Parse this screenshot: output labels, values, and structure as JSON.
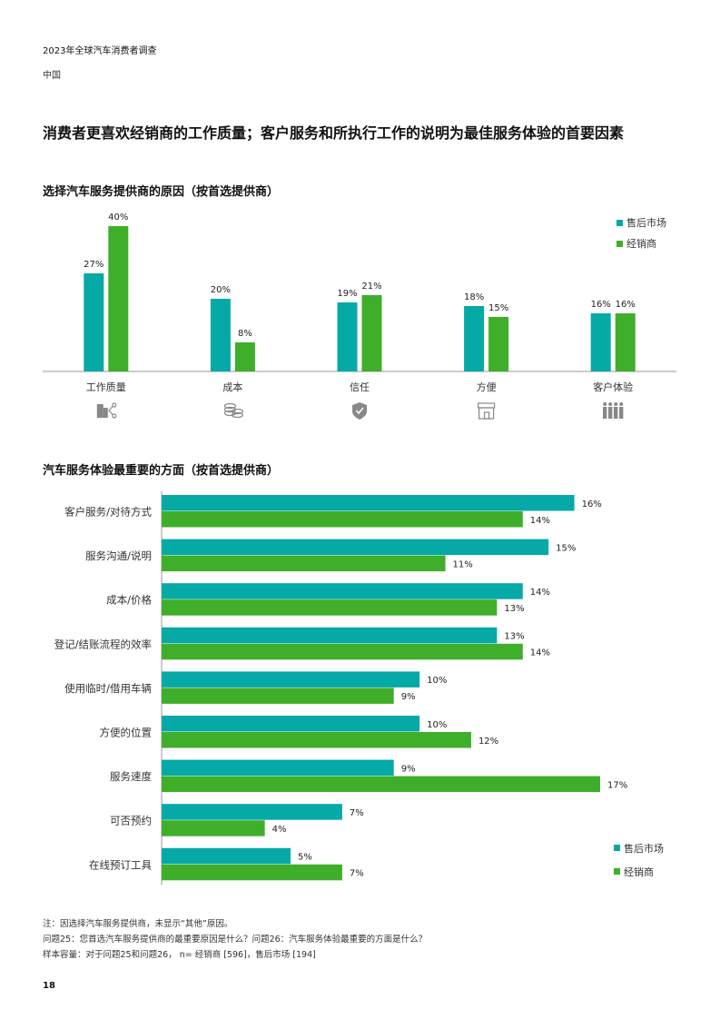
{
  "header": {
    "title": "2023年全球汽车消费者调查",
    "subtitle": "中国"
  },
  "main_title": "消费者更喜欢经销商的工作质量；客户服务和所执行工作的说明为最佳服务体验的首要因素",
  "colors": {
    "aftermarket": "#05A9A6",
    "dealer": "#3FAE2A",
    "axis": "#999999",
    "icon": "#888888"
  },
  "chart_data": [
    {
      "type": "bar",
      "title": "选择汽车服务提供商的原因（按首选提供商）",
      "categories": [
        "工作质量",
        "成本",
        "信任",
        "方便",
        "客户体验"
      ],
      "icons": [
        "building-network-icon",
        "coins-icon",
        "shield-check-icon",
        "storefront-icon",
        "people-group-icon"
      ],
      "series": [
        {
          "name": "售后市场",
          "values": [
            27,
            20,
            19,
            18,
            16
          ],
          "labels": [
            "27%",
            "20%",
            "19%",
            "18%",
            "16%"
          ]
        },
        {
          "name": "经销商",
          "values": [
            40,
            8,
            21,
            15,
            16
          ],
          "labels": [
            "40%",
            "8%",
            "21%",
            "15%",
            "16%"
          ]
        }
      ],
      "ylim": [
        0,
        40
      ],
      "legend": "top-right",
      "grid": false
    },
    {
      "type": "bar",
      "orientation": "horizontal",
      "title": "汽车服务体验最重要的方面（按首选提供商）",
      "categories": [
        "客户服务/对待方式",
        "服务沟通/说明",
        "成本/价格",
        "登记/结账流程的效率",
        "使用临时/借用车辆",
        "方便的位置",
        "服务速度",
        "可否预约",
        "在线预订工具"
      ],
      "series": [
        {
          "name": "售后市场",
          "values": [
            16,
            15,
            14,
            13,
            10,
            10,
            9,
            7,
            5
          ],
          "labels": [
            "16%",
            "15%",
            "14%",
            "13%",
            "10%",
            "10%",
            "9%",
            "7%",
            "5%"
          ]
        },
        {
          "name": "经销商",
          "values": [
            14,
            11,
            13,
            14,
            9,
            12,
            17,
            4,
            7
          ],
          "labels": [
            "14%",
            "11%",
            "13%",
            "14%",
            "9%",
            "12%",
            "17%",
            "4%",
            "7%"
          ]
        }
      ],
      "xlim": [
        0,
        17
      ],
      "legend": "bottom-right",
      "grid": false
    }
  ],
  "notes": [
    "注：因选择汽车服务提供商，未显示“其他”原因。",
    "问题25：您首选汽车服务提供商的最重要原因是什么？问题26：汽车服务体验最重要的方面是什么？",
    "样本容量：对于问题25和问题26， n= 经销商 [596]，售后市场 [194]"
  ],
  "page_number": "18"
}
